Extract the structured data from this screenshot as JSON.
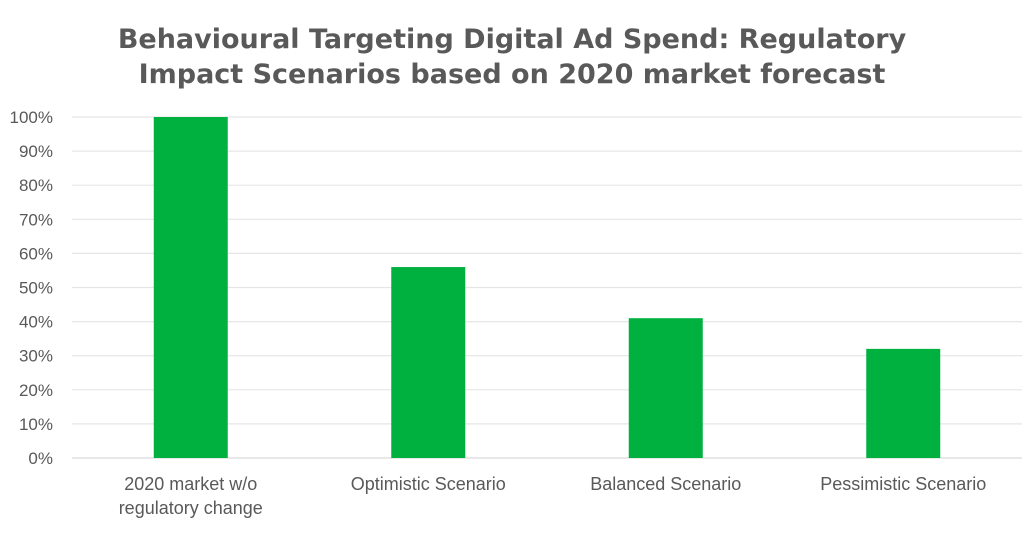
{
  "chart_data": {
    "type": "bar",
    "title_lines": [
      "Behavioural Targeting Digital Ad Spend: Regulatory",
      "Impact Scenarios based on 2020 market forecast"
    ],
    "categories": [
      [
        "2020 market w/o",
        "regulatory change"
      ],
      [
        "Optimistic Scenario"
      ],
      [
        "Balanced Scenario"
      ],
      [
        "Pessimistic Scenario"
      ]
    ],
    "values": [
      100,
      56,
      41,
      32
    ],
    "y_ticks": [
      "0%",
      "10%",
      "20%",
      "30%",
      "40%",
      "50%",
      "60%",
      "70%",
      "80%",
      "90%",
      "100%"
    ],
    "ylim": [
      0,
      100
    ],
    "grid": true,
    "legend": "none",
    "bar_color": "#00B140",
    "grid_color": "#E6E6E6",
    "text_color": "#595959"
  }
}
